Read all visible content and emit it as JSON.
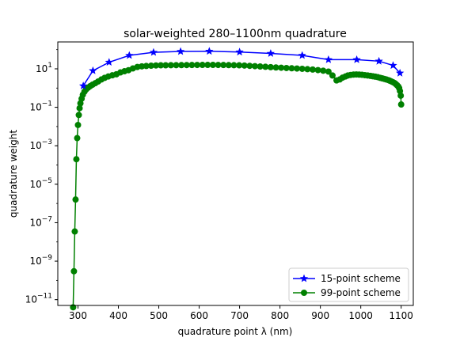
{
  "chart_data": {
    "type": "line",
    "title": "solar-weighted 280–1100nm quadrature",
    "xlabel": "quadrature point λ (nm)",
    "ylabel": "quadrature weight",
    "y_scale": "log",
    "xlim": [
      250,
      1130
    ],
    "ylim": [
      5e-12,
      250
    ],
    "x_ticks": [
      300,
      400,
      500,
      600,
      700,
      800,
      900,
      1000,
      1100
    ],
    "x_tick_labels": [
      "300",
      "400",
      "500",
      "600",
      "700",
      "800",
      "900",
      "1000",
      "1100"
    ],
    "y_ticks": [
      {
        "value": 1e-11,
        "base": "10",
        "exp": "−11"
      },
      {
        "value": 1e-09,
        "base": "10",
        "exp": "−9"
      },
      {
        "value": 1e-07,
        "base": "10",
        "exp": "−7"
      },
      {
        "value": 1e-05,
        "base": "10",
        "exp": "−5"
      },
      {
        "value": 0.001,
        "base": "10",
        "exp": "−3"
      },
      {
        "value": 0.1,
        "base": "10",
        "exp": "−1"
      },
      {
        "value": 10,
        "base": "10",
        "exp": "1"
      }
    ],
    "legend_position": "lower-right",
    "series": [
      {
        "name": "15-point scheme",
        "color": "#0000ff",
        "marker": "star",
        "x": [
          313,
          337,
          377,
          427,
          487,
          554,
          625,
          700,
          777,
          855,
          920,
          990,
          1045,
          1080,
          1097
        ],
        "y": [
          1.3,
          8,
          22,
          50,
          72,
          80,
          82,
          75,
          63,
          50,
          30,
          30,
          25,
          15,
          6
        ]
      },
      {
        "name": "99-point scheme",
        "color": "#008000",
        "marker": "circle",
        "x": [
          288,
          290,
          292,
          294,
          296,
          298,
          300,
          302,
          304,
          306,
          309,
          312,
          316,
          320,
          325,
          330,
          336,
          343,
          350,
          358,
          366,
          375,
          385,
          395,
          405,
          415,
          425,
          436,
          447,
          458,
          469,
          481,
          493,
          505,
          517,
          530,
          543,
          556,
          569,
          582,
          595,
          608,
          621,
          634,
          647,
          660,
          673,
          686,
          699,
          712,
          725,
          738,
          751,
          764,
          777,
          790,
          803,
          816,
          829,
          842,
          855,
          868,
          881,
          894,
          907,
          920,
          930,
          940,
          948,
          955,
          962,
          968,
          975,
          982,
          989,
          996,
          1003,
          1010,
          1017,
          1024,
          1030,
          1036,
          1042,
          1048,
          1053,
          1058,
          1063,
          1068,
          1072,
          1076,
          1080,
          1084,
          1087,
          1090,
          1093,
          1095,
          1097,
          1099,
          1100
        ],
        "y": [
          4e-12,
          3e-10,
          3.5e-08,
          1.6e-06,
          0.0002,
          0.0025,
          0.012,
          0.04,
          0.09,
          0.16,
          0.28,
          0.45,
          0.65,
          0.85,
          1.05,
          1.25,
          1.5,
          1.8,
          2.2,
          2.8,
          3.4,
          4.0,
          4.6,
          5.2,
          6.5,
          7.5,
          8.5,
          10.5,
          12.5,
          13.5,
          14,
          14.5,
          15,
          15.2,
          15.3,
          15.4,
          15.5,
          15.6,
          15.7,
          15.8,
          15.9,
          16,
          16,
          16,
          15.9,
          15.8,
          15.6,
          15.4,
          15.2,
          14.8,
          14.3,
          13.8,
          13.2,
          12.8,
          12.2,
          11.8,
          11.4,
          11,
          10.7,
          10.4,
          10,
          9.6,
          9.2,
          8.6,
          8.0,
          7.2,
          4.5,
          2.5,
          2.8,
          3.5,
          4.0,
          4.5,
          4.8,
          5.0,
          5.1,
          5.0,
          4.9,
          4.7,
          4.5,
          4.3,
          4.1,
          3.9,
          3.7,
          3.4,
          3.2,
          3.0,
          2.8,
          2.6,
          2.4,
          2.2,
          2.0,
          1.8,
          1.6,
          1.4,
          1.2,
          1.0,
          0.7,
          0.4,
          0.14
        ]
      }
    ]
  }
}
